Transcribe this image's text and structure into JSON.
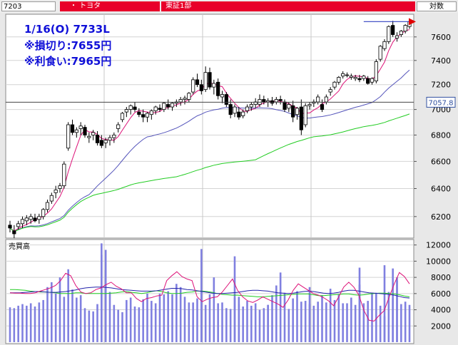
{
  "header": {
    "code": "7203",
    "name": "・ トヨタ",
    "market": "東証1部",
    "scale": "対数"
  },
  "info": {
    "line1": "1/16(O) 7733L",
    "line2": "※損切り:7655円",
    "line3": "※利食い:7965円"
  },
  "current_price_label": "7057.8",
  "colors": {
    "up_candle": "#ffffff",
    "down_candle": "#000000",
    "ma_short": "#dd1177",
    "ma_mid": "#5555bb",
    "ma_long": "#22cc22",
    "volume_bar": "#8080e0",
    "info_text": "#1010d8",
    "header_red": "#e8002a"
  },
  "chart_data": [
    {
      "type": "candlestick",
      "scale": "log",
      "ylim": [
        6080,
        7760
      ],
      "yticks": [
        6200,
        6400,
        6600,
        6800,
        7000,
        7200,
        7400,
        7600
      ],
      "grid": true,
      "current_price": 7057.8,
      "reference_line": 7733,
      "ohlc": [
        [
          6140,
          6170,
          6090,
          6120
        ],
        [
          6100,
          6140,
          6050,
          6080
        ],
        [
          6130,
          6170,
          6110,
          6150
        ],
        [
          6150,
          6200,
          6120,
          6180
        ],
        [
          6170,
          6210,
          6140,
          6190
        ],
        [
          6180,
          6220,
          6150,
          6200
        ],
        [
          6190,
          6220,
          6160,
          6170
        ],
        [
          6180,
          6220,
          6150,
          6200
        ],
        [
          6200,
          6260,
          6180,
          6250
        ],
        [
          6250,
          6320,
          6230,
          6300
        ],
        [
          6310,
          6370,
          6290,
          6350
        ],
        [
          6370,
          6420,
          6330,
          6390
        ],
        [
          6400,
          6440,
          6370,
          6420
        ],
        [
          6420,
          6600,
          6400,
          6580
        ],
        [
          6700,
          6900,
          6680,
          6880
        ],
        [
          6880,
          6920,
          6800,
          6820
        ],
        [
          6820,
          6860,
          6780,
          6840
        ],
        [
          6850,
          6900,
          6800,
          6870
        ],
        [
          6860,
          6880,
          6780,
          6800
        ],
        [
          6780,
          6820,
          6740,
          6790
        ],
        [
          6800,
          6840,
          6760,
          6820
        ],
        [
          6800,
          6830,
          6720,
          6740
        ],
        [
          6760,
          6800,
          6700,
          6720
        ],
        [
          6740,
          6780,
          6700,
          6760
        ],
        [
          6760,
          6800,
          6720,
          6780
        ],
        [
          6780,
          6820,
          6740,
          6800
        ],
        [
          6850,
          6900,
          6820,
          6880
        ],
        [
          6920,
          6980,
          6900,
          6970
        ],
        [
          6980,
          7020,
          6940,
          7000
        ],
        [
          7000,
          7040,
          6960,
          7030
        ],
        [
          7020,
          7060,
          6980,
          7000
        ],
        [
          6980,
          7010,
          6940,
          6960
        ],
        [
          6960,
          7000,
          6900,
          6940
        ],
        [
          6940,
          6980,
          6900,
          6970
        ],
        [
          6960,
          7000,
          6920,
          6990
        ],
        [
          6990,
          7030,
          6960,
          7020
        ],
        [
          7010,
          7040,
          6980,
          7000
        ],
        [
          7000,
          7060,
          6980,
          7050
        ],
        [
          7040,
          7080,
          7000,
          7020
        ],
        [
          7020,
          7060,
          6990,
          7050
        ],
        [
          7050,
          7080,
          7020,
          7060
        ],
        [
          7060,
          7100,
          7030,
          7080
        ],
        [
          7080,
          7110,
          7040,
          7090
        ],
        [
          7080,
          7140,
          7060,
          7130
        ],
        [
          7140,
          7260,
          7120,
          7240
        ],
        [
          7240,
          7290,
          7180,
          7200
        ],
        [
          7200,
          7240,
          7120,
          7150
        ],
        [
          7160,
          7350,
          7140,
          7300
        ],
        [
          7300,
          7340,
          7160,
          7180
        ],
        [
          7180,
          7240,
          7120,
          7210
        ],
        [
          7220,
          7250,
          7080,
          7110
        ],
        [
          7100,
          7150,
          7050,
          7120
        ],
        [
          7120,
          7140,
          7020,
          7040
        ],
        [
          7040,
          7080,
          6930,
          6960
        ],
        [
          6970,
          7040,
          6940,
          7020
        ],
        [
          6980,
          7020,
          6920,
          6940
        ],
        [
          6950,
          7000,
          6930,
          6980
        ],
        [
          6990,
          7040,
          6970,
          7020
        ],
        [
          7020,
          7060,
          6990,
          7040
        ],
        [
          7040,
          7090,
          7010,
          7060
        ],
        [
          7040,
          7120,
          7020,
          7080
        ],
        [
          7080,
          7110,
          7040,
          7060
        ],
        [
          7060,
          7090,
          7020,
          7070
        ],
        [
          7070,
          7100,
          7030,
          7050
        ],
        [
          7060,
          7100,
          7040,
          7080
        ],
        [
          7080,
          7110,
          7040,
          7070
        ],
        [
          7060,
          7080,
          6980,
          7000
        ],
        [
          7010,
          7060,
          6980,
          7040
        ],
        [
          7030,
          7070,
          6900,
          6940
        ],
        [
          6960,
          7020,
          6920,
          7010
        ],
        [
          7020,
          7080,
          6800,
          6840
        ],
        [
          6880,
          7050,
          6860,
          7030
        ],
        [
          7030,
          7060,
          7000,
          7040
        ],
        [
          7050,
          7080,
          7020,
          7060
        ],
        [
          7060,
          7120,
          7040,
          7100
        ],
        [
          7040,
          7080,
          6980,
          7000
        ],
        [
          7060,
          7120,
          7040,
          7100
        ],
        [
          7140,
          7180,
          7110,
          7160
        ],
        [
          7180,
          7230,
          7160,
          7220
        ],
        [
          7220,
          7270,
          7200,
          7260
        ],
        [
          7270,
          7310,
          7250,
          7290
        ],
        [
          7280,
          7300,
          7260,
          7280
        ],
        [
          7260,
          7290,
          7240,
          7270
        ],
        [
          7250,
          7280,
          7230,
          7260
        ],
        [
          7250,
          7280,
          7220,
          7240
        ],
        [
          7250,
          7280,
          7230,
          7270
        ],
        [
          7250,
          7270,
          7200,
          7210
        ],
        [
          7220,
          7260,
          7200,
          7250
        ],
        [
          7230,
          7410,
          7210,
          7390
        ],
        [
          7410,
          7530,
          7390,
          7520
        ],
        [
          7500,
          7580,
          7480,
          7560
        ],
        [
          7560,
          7700,
          7540,
          7690
        ],
        [
          7700,
          7740,
          7600,
          7620
        ],
        [
          7590,
          7640,
          7560,
          7610
        ],
        [
          7620,
          7660,
          7600,
          7650
        ],
        [
          7650,
          7710,
          7630,
          7700
        ],
        [
          7690,
          7750,
          7670,
          7733
        ]
      ]
    },
    {
      "type": "bar",
      "title": "売買高",
      "ylim": [
        0,
        12500
      ],
      "yticks": [
        2000,
        4000,
        6000,
        8000,
        10000,
        12000
      ],
      "values": [
        4300,
        4200,
        4500,
        4700,
        4500,
        4800,
        4400,
        4900,
        5200,
        6800,
        7400,
        6000,
        8000,
        5600,
        9000,
        6500,
        5500,
        5800,
        4200,
        3900,
        3800,
        4700,
        10800,
        8900,
        6200,
        4600,
        4000,
        3700,
        5200,
        5500,
        4400,
        4300,
        5300,
        6000,
        5100,
        4800,
        6000,
        5900,
        6300,
        5900,
        7200,
        6800,
        5600,
        4900,
        4900,
        5400,
        6200,
        4600,
        5900,
        8000,
        4800,
        4900,
        4200,
        4100,
        5500,
        4700,
        4400,
        5100,
        4500,
        4800,
        4000,
        4200,
        4600,
        5800,
        7000,
        8600,
        6100,
        4100,
        5400,
        6300,
        5000,
        5100,
        6800,
        4500,
        5000,
        5800,
        4900,
        6600,
        5200,
        5900,
        4800,
        4800,
        5500,
        4600,
        7100,
        4800,
        5100,
        6100,
        6100,
        4500,
        3200,
        6200,
        5400,
        8000,
        4700,
        5000,
        4600
      ],
      "volume_extra": [
        12200,
        11500,
        5600,
        4600,
        11400,
        10600,
        4700,
        9200,
        9500,
        9100,
        7600
      ],
      "series": [
        {
          "name": "",
          "values": [
            6500,
            6500,
            6450,
            6400,
            6300,
            6250,
            6200,
            6200,
            6150,
            6100,
            6000,
            6000,
            6000,
            6100,
            6100,
            6000,
            6000,
            6000,
            6000,
            6000,
            6050,
            6100,
            6200,
            6250,
            6150,
            6100,
            6000,
            6100,
            6250,
            6350,
            6250,
            6100,
            6000,
            6000,
            6050,
            6150,
            6200,
            6300,
            6300,
            6250,
            6150,
            6000,
            5900,
            5850,
            5800,
            5800,
            5750,
            5700,
            5650,
            5600,
            5600,
            5650,
            5700,
            5750,
            5800,
            5850,
            5900,
            5950,
            5950,
            5950,
            5850,
            5750,
            5750,
            5800,
            5850,
            5900,
            5950,
            5950,
            5850,
            5800,
            5850,
            5950,
            6000,
            6050,
            6050,
            6000,
            5950,
            5850,
            5700,
            5600
          ]
        },
        {
          "name": "",
          "values": [
            6100,
            6100,
            6100,
            6150,
            6200,
            6250,
            6250,
            6200,
            6150,
            6150,
            6200,
            6250,
            6350,
            6450,
            6600,
            6700,
            6750,
            6800,
            6800,
            6750,
            6700,
            6600,
            6500,
            6450,
            6400,
            6350,
            6300,
            6300,
            6300,
            6350,
            6450,
            6550,
            6650,
            6650,
            6600,
            6500,
            6450,
            6350,
            6250,
            6150,
            6050,
            6000,
            6000,
            6050,
            6100,
            6150,
            6250,
            6350,
            6400,
            6400,
            6350,
            6300,
            6200,
            6100,
            6050,
            6000,
            6050,
            6150,
            6250,
            6300,
            6250,
            6150,
            6050,
            6000,
            6050,
            6150,
            6300,
            6400,
            6400,
            6300,
            6200,
            6100,
            6050,
            6000,
            5950,
            5900,
            5800,
            5650,
            5500,
            5450
          ]
        },
        {
          "name": "",
          "values": [
            6100,
            6050,
            6050,
            6000,
            6000,
            6100,
            6300,
            6500,
            6700,
            7000,
            7600,
            8500,
            8200,
            7000,
            6200,
            6000,
            6100,
            6500,
            6700,
            7100,
            7400,
            6900,
            6600,
            6100,
            6100,
            5400,
            5000,
            5400,
            5500,
            5700,
            5800,
            7600,
            8200,
            8700,
            8100,
            7800,
            7600,
            5600,
            5000,
            5300,
            5500,
            5600,
            6200,
            7000,
            7800,
            6400,
            5600,
            5100,
            4900,
            5200,
            5600,
            5300,
            5000,
            4700,
            4300,
            5200,
            6400,
            7200,
            6800,
            6400,
            6000,
            5800,
            5500,
            5100,
            4500,
            5600,
            6800,
            7400,
            6800,
            5800,
            3900,
            2700,
            2600,
            3300,
            3900,
            5600,
            7200,
            8600,
            8100,
            7200
          ]
        }
      ]
    }
  ]
}
